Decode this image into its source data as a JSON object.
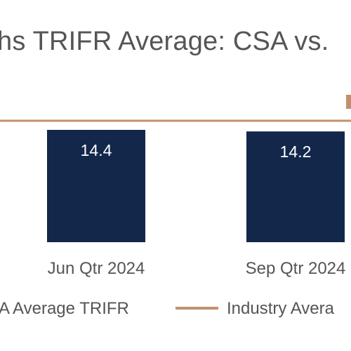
{
  "chart_data": {
    "type": "bar",
    "title": "hs TRIFR Average: CSA vs.",
    "categories": [
      "Jun Qtr 2024",
      "Sep Qtr 2024"
    ],
    "series": [
      {
        "name": "A Average TRIFR",
        "values": [
          14.4,
          14.2
        ],
        "color": "#13274a",
        "kind": "bar"
      },
      {
        "name": "Industry Avera",
        "kind": "line",
        "color": "#c0916d"
      }
    ],
    "xlabel": "",
    "ylabel": "",
    "grid": false,
    "legend_position": "bottom"
  }
}
